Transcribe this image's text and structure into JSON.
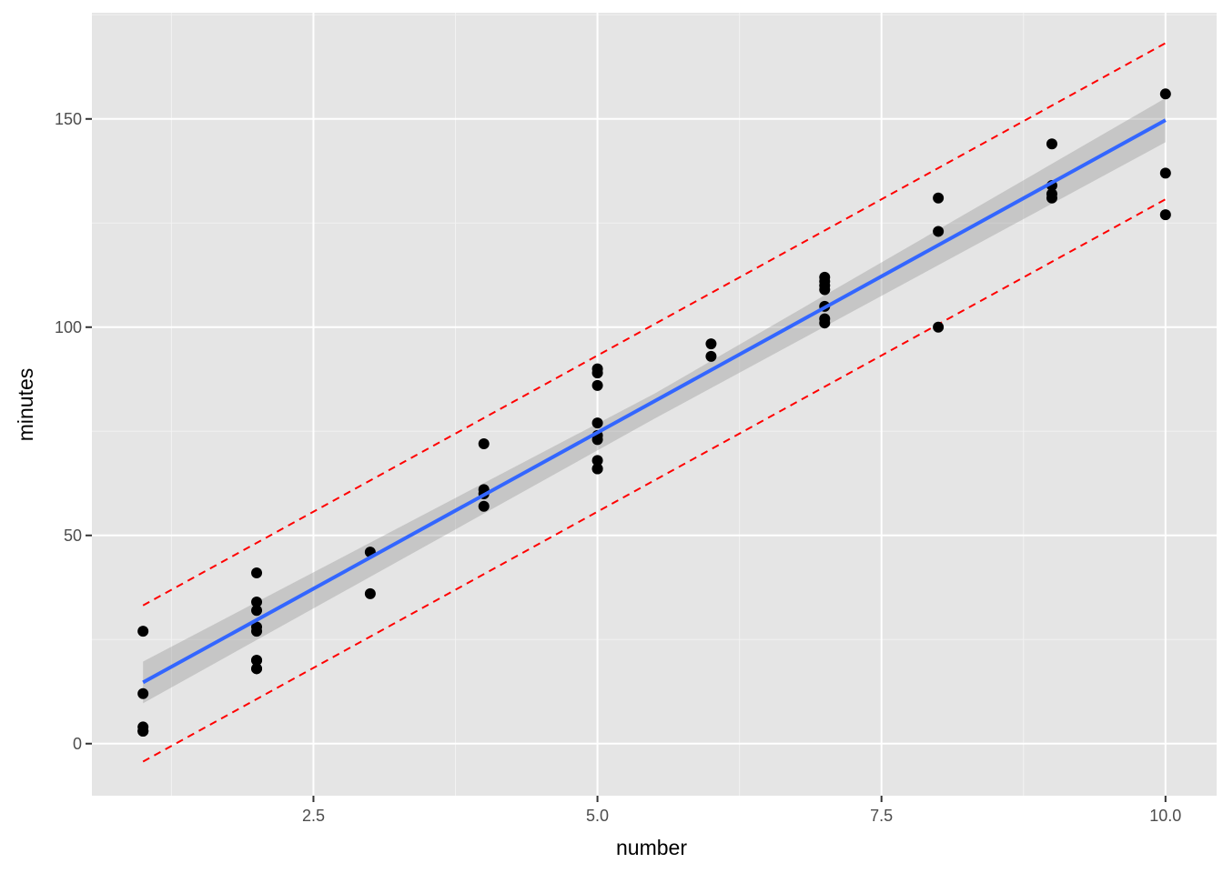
{
  "chart_data": {
    "type": "scatter",
    "xlabel": "number",
    "ylabel": "minutes",
    "xlim": [
      0.55,
      10.45
    ],
    "ylim": [
      -12.5,
      175.5
    ],
    "x_ticks": [
      2.5,
      5.0,
      7.5,
      10.0
    ],
    "x_tick_labels": [
      "2.5",
      "5.0",
      "7.5",
      "10.0"
    ],
    "y_ticks": [
      0,
      50,
      100,
      150
    ],
    "y_tick_labels": [
      "0",
      "50",
      "100",
      "150"
    ],
    "grid": true,
    "legend": "none",
    "points": {
      "x": [
        1,
        1,
        1,
        1,
        1,
        2,
        2,
        2,
        2,
        2,
        2,
        2,
        2,
        2,
        3,
        3,
        4,
        4,
        4,
        4,
        5,
        5,
        5,
        5,
        5,
        5,
        5,
        5,
        5,
        6,
        6,
        7,
        7,
        7,
        7,
        7,
        7,
        7,
        8,
        8,
        8,
        9,
        9,
        9,
        9,
        10,
        10,
        10
      ],
      "y": [
        27,
        12,
        4,
        3,
        3,
        41,
        34,
        32,
        28,
        27,
        20,
        20,
        18,
        18,
        46,
        36,
        72,
        61,
        60,
        57,
        90,
        89,
        86,
        77,
        74,
        73,
        68,
        66,
        66,
        96,
        93,
        112,
        111,
        110,
        109,
        105,
        102,
        101,
        131,
        123,
        100,
        144,
        134,
        132,
        131,
        156,
        137,
        127
      ],
      "color": "#000000"
    },
    "fit_line": {
      "x": [
        1,
        10
      ],
      "y": [
        14.7,
        149.7
      ],
      "color": "#3366FF"
    },
    "confidence_band": {
      "x": [
        1,
        5.5,
        10
      ],
      "lower": [
        9.7,
        78.0,
        144.4
      ],
      "upper": [
        19.7,
        84.0,
        155.0
      ],
      "color": "#999999"
    },
    "prediction_bounds": {
      "x": [
        1,
        10
      ],
      "lower": [
        -4.3,
        130.7
      ],
      "upper": [
        33.2,
        168.2
      ],
      "color": "#FF0000",
      "style": "dashed"
    }
  }
}
